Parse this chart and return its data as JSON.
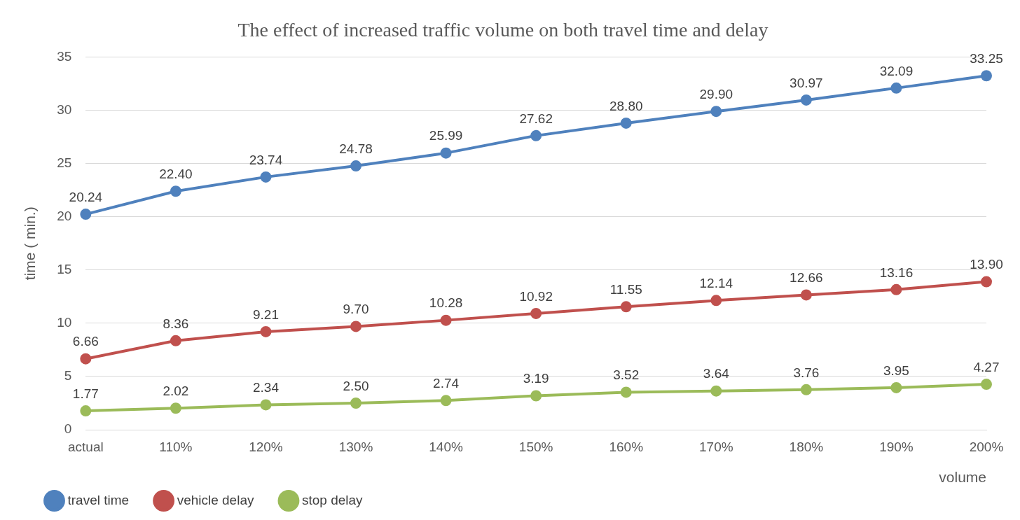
{
  "chart_data": {
    "type": "line",
    "title": "The effect of increased traffic volume on both travel time and delay",
    "xlabel": "volume",
    "ylabel": "time ( min.)",
    "categories": [
      "actual",
      "110%",
      "120%",
      "130%",
      "140%",
      "150%",
      "160%",
      "170%",
      "180%",
      "190%",
      "200%"
    ],
    "series": [
      {
        "name": "travel time",
        "color": "#4f81bd",
        "values": [
          20.24,
          22.4,
          23.74,
          24.78,
          25.99,
          27.62,
          28.8,
          29.9,
          30.97,
          32.09,
          33.25
        ],
        "value_labels": [
          "20.24",
          "22.40",
          "23.74",
          "24.78",
          "25.99",
          "27.62",
          "28.80",
          "29.90",
          "30.97",
          "32.09",
          "33.25"
        ]
      },
      {
        "name": "vehicle delay",
        "color": "#c0504d",
        "values": [
          6.66,
          8.36,
          9.21,
          9.7,
          10.28,
          10.92,
          11.55,
          12.14,
          12.66,
          13.16,
          13.9
        ],
        "value_labels": [
          "6.66",
          "8.36",
          "9.21",
          "9.70",
          "10.28",
          "10.92",
          "11.55",
          "12.14",
          "12.66",
          "13.16",
          "13.90"
        ]
      },
      {
        "name": "stop delay",
        "color": "#9bbb59",
        "values": [
          1.77,
          2.02,
          2.34,
          2.5,
          2.74,
          3.19,
          3.52,
          3.64,
          3.76,
          3.95,
          4.27
        ],
        "value_labels": [
          "1.77",
          "2.02",
          "2.34",
          "2.50",
          "2.74",
          "3.19",
          "3.52",
          "3.64",
          "3.76",
          "3.95",
          "4.27"
        ]
      }
    ],
    "ylim": [
      0,
      35
    ],
    "yticks": [
      0,
      5,
      10,
      15,
      20,
      25,
      30,
      35
    ],
    "grid": "y",
    "legend": "bottom left",
    "marker": "circle",
    "line_style": "solid"
  }
}
